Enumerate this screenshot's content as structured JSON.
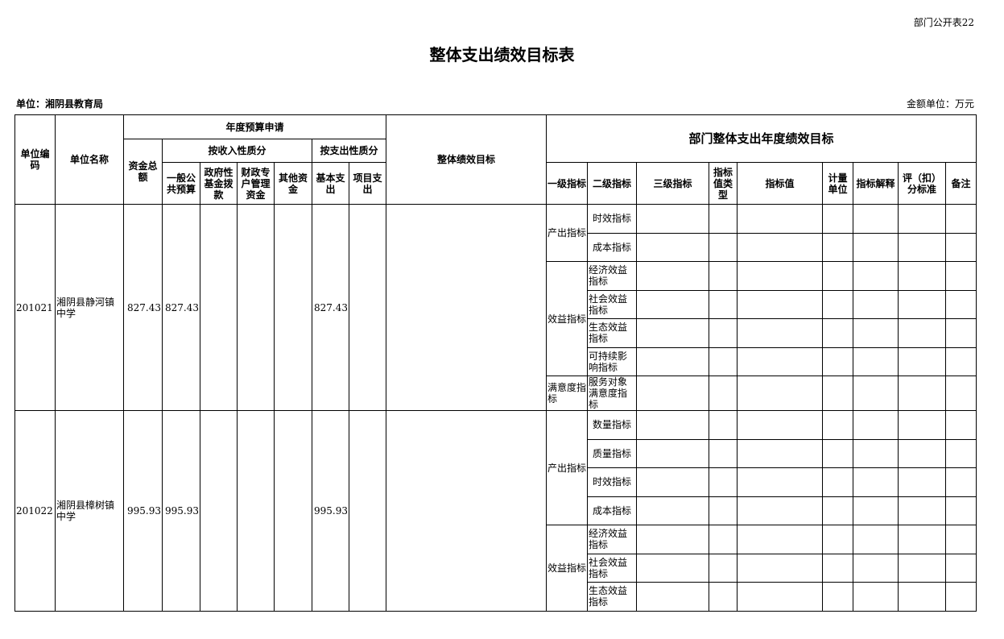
{
  "form_code": "部门公开表22",
  "title": "整体支出绩效目标表",
  "unit_label": "单位：湘阴县教育局",
  "money_unit": "金额单位：万元",
  "headers": {
    "unit_code": "单位编码",
    "unit_name": "单位名称",
    "annual_budget": "年度预算申请",
    "by_income": "按收入性质分",
    "by_expense": "按支出性质分",
    "total": "资金总额",
    "general": "一般公共预算",
    "gov_fund": "政府性基金拨款",
    "special": "财政专户管理资金",
    "other": "其他资金",
    "basic": "基本支出",
    "project": "项目支出",
    "overall_goal": "整体绩效目标",
    "dept_goal": "部门整体支出年度绩效目标",
    "l1": "一级指标",
    "l2": "二级指标",
    "l3": "三级指标",
    "vtype": "指标值类型",
    "value": "指标值",
    "measure": "计量单位",
    "explain": "指标解释",
    "score": "评（扣）分标准",
    "note": "备注"
  },
  "units": [
    {
      "code": "201021",
      "name": "湘阴县静河镇中学",
      "total": "827.43",
      "general": "827.43",
      "gov_fund": "",
      "special": "",
      "other": "",
      "basic": "827.43",
      "project": "",
      "goal": "",
      "groups": [
        {
          "l1": "产出指标",
          "l2": [
            "时效指标",
            "成本指标"
          ]
        },
        {
          "l1": "效益指标",
          "l2": [
            "经济效益指标",
            "社会效益指标",
            "生态效益指标",
            "可持续影响指标"
          ]
        },
        {
          "l1": "满意度指标",
          "l2": [
            "服务对象满意度指标"
          ]
        }
      ]
    },
    {
      "code": "201022",
      "name": "湘阴县樟树镇中学",
      "total": "995.93",
      "general": "995.93",
      "gov_fund": "",
      "special": "",
      "other": "",
      "basic": "995.93",
      "project": "",
      "goal": "",
      "groups": [
        {
          "l1": "产出指标",
          "l2": [
            "数量指标",
            "质量指标",
            "时效指标",
            "成本指标"
          ]
        },
        {
          "l1": "效益指标",
          "l2": [
            "经济效益指标",
            "社会效益指标",
            "生态效益指标"
          ]
        }
      ]
    }
  ]
}
